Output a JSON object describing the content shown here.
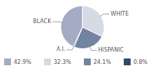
{
  "chart_data": {
    "type": "pie",
    "categories": [
      "BLACK",
      "WHITE",
      "HISPANIC",
      "A.I."
    ],
    "values": [
      42.9,
      32.3,
      24.1,
      0.8
    ],
    "value_labels": [
      "42.9%",
      "32.3%",
      "24.1%",
      "0.8%"
    ],
    "colors": [
      "#a3acc4",
      "#d5dae5",
      "#7184a2",
      "#2e4a6c"
    ],
    "legend": "bottom"
  }
}
